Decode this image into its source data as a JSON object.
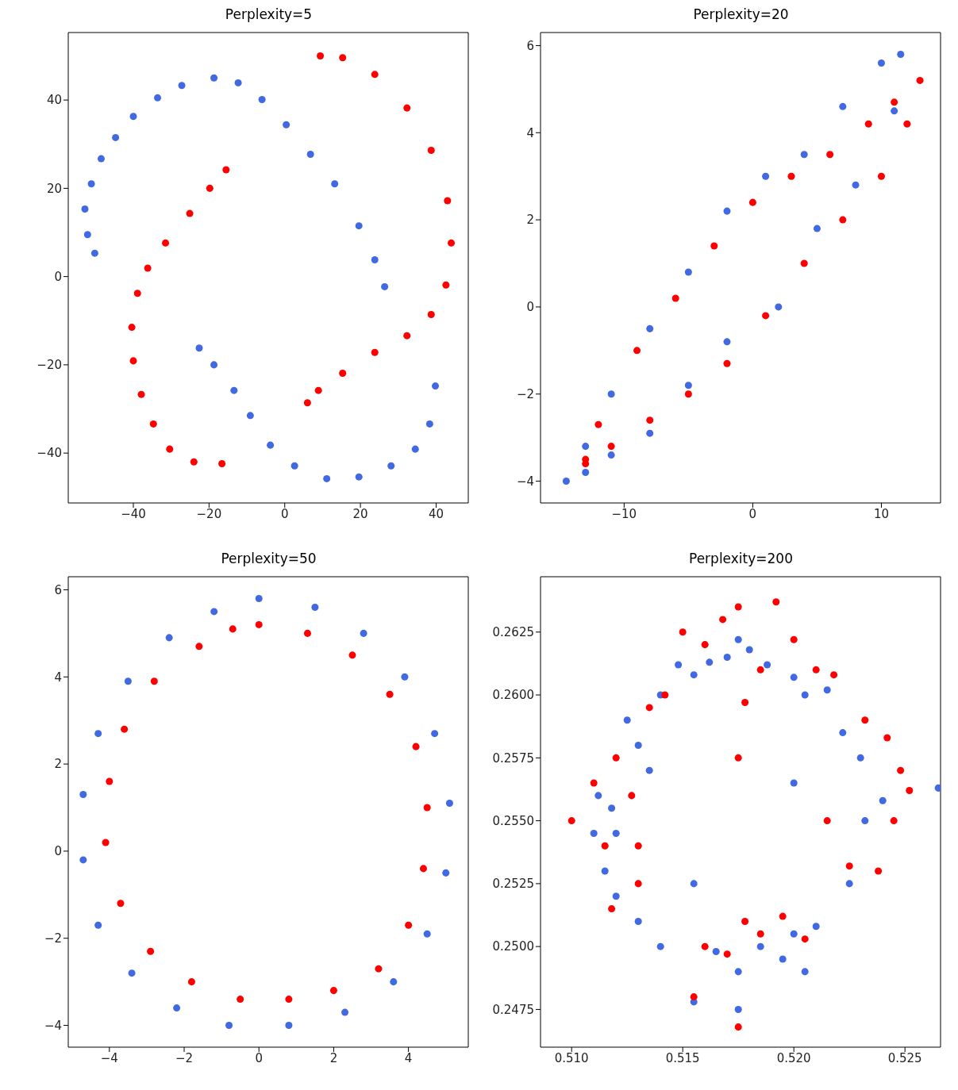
{
  "chart_data": [
    {
      "type": "scatter",
      "title": "Perplexity=5",
      "marker": "circle",
      "xlim": [
        -57.2,
        48.5
      ],
      "ylim": [
        -51.3,
        55.3
      ],
      "xticks": [
        -40,
        -20,
        0,
        20,
        40
      ],
      "yticks": [
        -40,
        -20,
        0,
        20,
        40
      ],
      "series": [
        {
          "color": "#4169e1",
          "x": [
            -50.2,
            -52.1,
            -52.8,
            -51.1,
            -48.5,
            -44.7,
            -40.0,
            -33.6,
            -27.2,
            -18.7,
            -12.3,
            -6.0,
            0.4,
            6.8,
            13.2,
            19.6,
            23.8,
            26.4,
            -22.6,
            -18.7,
            -13.4,
            -9.1,
            -3.8,
            2.6,
            11.1,
            19.6,
            28.1,
            34.5,
            38.3,
            39.8
          ],
          "values": [
            5.3,
            9.5,
            15.3,
            21.0,
            26.7,
            31.5,
            36.3,
            40.5,
            43.3,
            45.0,
            43.9,
            40.1,
            34.4,
            27.7,
            21.0,
            11.5,
            3.8,
            -2.3,
            -16.2,
            -20.0,
            -25.8,
            -31.5,
            -38.2,
            -42.9,
            -45.8,
            -45.4,
            -42.9,
            -39.1,
            -33.4,
            -24.8
          ]
        },
        {
          "color": "#ff0000",
          "x": [
            9.4,
            15.3,
            23.8,
            32.3,
            38.7,
            43.0,
            44.0,
            42.6,
            38.7,
            32.3,
            23.8,
            15.3,
            8.9,
            6.0,
            -15.5,
            -19.8,
            -25.1,
            -31.5,
            -36.2,
            -38.9,
            -40.4,
            -40.0,
            -37.9,
            -34.7,
            -30.4,
            -24.0,
            -16.6
          ],
          "values": [
            50.0,
            49.6,
            45.8,
            38.2,
            28.6,
            17.2,
            7.6,
            -1.9,
            -8.6,
            -13.4,
            -17.2,
            -21.9,
            -25.8,
            -28.6,
            24.2,
            20.0,
            14.3,
            7.6,
            1.9,
            -3.8,
            -11.5,
            -19.1,
            -26.7,
            -33.4,
            -39.1,
            -42.0,
            -42.4
          ]
        }
      ]
    },
    {
      "type": "scatter",
      "title": "Perplexity=20",
      "marker": "circle",
      "xlim": [
        -16.5,
        14.6
      ],
      "ylim": [
        -4.5,
        6.3
      ],
      "xticks": [
        -10,
        0,
        10
      ],
      "yticks": [
        -4,
        -2,
        0,
        2,
        4,
        6
      ],
      "series": [
        {
          "color": "#4169e1",
          "x": [
            -14.5,
            -13,
            -11,
            -8,
            -5,
            -2,
            1,
            4,
            7,
            10,
            11.5,
            11,
            8,
            5,
            2,
            -2,
            -5,
            -8,
            -11,
            -13
          ],
          "values": [
            -4,
            -3.2,
            -2,
            -0.5,
            0.8,
            2.2,
            3,
            3.5,
            4.6,
            5.6,
            5.8,
            4.5,
            2.8,
            1.8,
            0,
            -0.8,
            -1.8,
            -2.9,
            -3.4,
            -3.8
          ]
        },
        {
          "color": "#ff0000",
          "x": [
            -13,
            -12,
            -9,
            -6,
            -3,
            0,
            3,
            6,
            9,
            11,
            13,
            12,
            10,
            7,
            4,
            1,
            -2,
            -5,
            -8,
            -11,
            -13
          ],
          "values": [
            -3.5,
            -2.7,
            -1,
            0.2,
            1.4,
            2.4,
            3,
            3.5,
            4.2,
            4.7,
            5.2,
            4.2,
            3,
            2,
            1,
            -0.2,
            -1.3,
            -2,
            -2.6,
            -3.2,
            -3.6
          ]
        }
      ]
    },
    {
      "type": "scatter",
      "title": "Perplexity=50",
      "marker": "circle",
      "xlim": [
        -5.1,
        5.6
      ],
      "ylim": [
        -4.5,
        6.3
      ],
      "xticks": [
        -4,
        -2,
        0,
        2,
        4
      ],
      "yticks": [
        -4,
        -2,
        0,
        2,
        4,
        6
      ],
      "series": [
        {
          "color": "#4169e1",
          "x": [
            0,
            1.5,
            2.8,
            3.9,
            4.7,
            5.1,
            5.0,
            4.5,
            3.6,
            2.3,
            0.8,
            -0.8,
            -2.2,
            -3.4,
            -4.3,
            -4.7,
            -4.7,
            -4.3,
            -3.5,
            -2.4,
            -1.2
          ],
          "values": [
            5.8,
            5.6,
            5.0,
            4.0,
            2.7,
            1.1,
            -0.5,
            -1.9,
            -3.0,
            -3.7,
            -4.0,
            -4.0,
            -3.6,
            -2.8,
            -1.7,
            -0.2,
            1.3,
            2.7,
            3.9,
            4.9,
            5.5
          ]
        },
        {
          "color": "#ff0000",
          "x": [
            0,
            1.3,
            2.5,
            3.5,
            4.2,
            4.5,
            4.4,
            4.0,
            3.2,
            2.0,
            0.8,
            -0.5,
            -1.8,
            -2.9,
            -3.7,
            -4.1,
            -4.0,
            -3.6,
            -2.8,
            -1.6,
            -0.7
          ],
          "values": [
            5.2,
            5.0,
            4.5,
            3.6,
            2.4,
            1.0,
            -0.4,
            -1.7,
            -2.7,
            -3.2,
            -3.4,
            -3.4,
            -3.0,
            -2.3,
            -1.2,
            0.2,
            1.6,
            2.8,
            3.9,
            4.7,
            5.1
          ]
        }
      ]
    },
    {
      "type": "scatter",
      "title": "Perplexity=200",
      "marker": "circle",
      "xlim": [
        0.5086,
        0.5266
      ],
      "ylim": [
        0.246,
        0.2647
      ],
      "xticks": [
        {
          "value": 0.51,
          "label": "0.510"
        },
        0.515,
        {
          "value": 0.52,
          "label": "0.520"
        },
        0.525
      ],
      "yticks": [
        0.2475,
        {
          "value": 0.25,
          "label": "0.2500"
        },
        0.2525,
        {
          "value": 0.255,
          "label": "0.2550"
        },
        0.2575,
        {
          "value": 0.26,
          "label": "0.2600"
        },
        0.2625
      ],
      "series": [
        {
          "color": "#4169e1",
          "x": [
            0.5112,
            0.5118,
            0.5125,
            0.513,
            0.5135,
            0.514,
            0.5148,
            0.5155,
            0.5162,
            0.517,
            0.5175,
            0.518,
            0.5188,
            0.52,
            0.5205,
            0.5215,
            0.5222,
            0.523,
            0.524,
            0.5232,
            0.5265,
            0.52,
            0.5225,
            0.521,
            0.52,
            0.5195,
            0.5185,
            0.5175,
            0.5165,
            0.5155,
            0.5175,
            0.514,
            0.513,
            0.512,
            0.5115,
            0.512,
            0.511,
            0.5155,
            0.5205
          ],
          "values": [
            0.256,
            0.2555,
            0.259,
            0.258,
            0.257,
            0.26,
            0.2612,
            0.2608,
            0.2613,
            0.2615,
            0.2622,
            0.2618,
            0.2612,
            0.2607,
            0.26,
            0.2602,
            0.2585,
            0.2575,
            0.2558,
            0.255,
            0.2563,
            0.2565,
            0.2525,
            0.2508,
            0.2505,
            0.2495,
            0.25,
            0.249,
            0.2498,
            0.2478,
            0.2475,
            0.25,
            0.251,
            0.252,
            0.253,
            0.2545,
            0.2545,
            0.2525,
            0.249
          ]
        },
        {
          "color": "#ff0000",
          "x": [
            0.51,
            0.511,
            0.512,
            0.5127,
            0.513,
            0.5135,
            0.5142,
            0.515,
            0.516,
            0.5168,
            0.5175,
            0.5178,
            0.5175,
            0.5185,
            0.5192,
            0.52,
            0.521,
            0.5218,
            0.5232,
            0.5242,
            0.5248,
            0.5252,
            0.5245,
            0.5238,
            0.5225,
            0.5215,
            0.5205,
            0.5195,
            0.5185,
            0.5178,
            0.517,
            0.516,
            0.5155,
            0.5175,
            0.513,
            0.5118,
            0.5115
          ],
          "values": [
            0.255,
            0.2565,
            0.2575,
            0.256,
            0.254,
            0.2595,
            0.26,
            0.2625,
            0.262,
            0.263,
            0.2635,
            0.2597,
            0.2575,
            0.261,
            0.2637,
            0.2622,
            0.261,
            0.2608,
            0.259,
            0.2583,
            0.257,
            0.2562,
            0.255,
            0.253,
            0.2532,
            0.255,
            0.2503,
            0.2512,
            0.2505,
            0.251,
            0.2497,
            0.25,
            0.248,
            0.2468,
            0.2525,
            0.2515,
            0.254
          ]
        }
      ]
    }
  ]
}
